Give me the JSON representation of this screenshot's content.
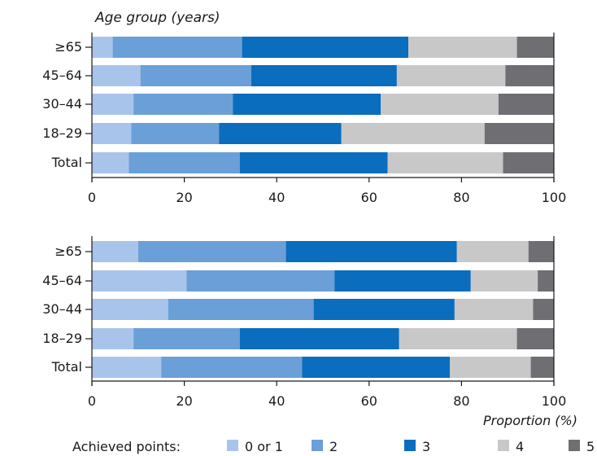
{
  "chart_data": [
    {
      "type": "bar",
      "orientation": "horizontal",
      "stacked": true,
      "ylabel": "Age group (years)",
      "xlabel": "",
      "xlim": [
        0,
        100
      ],
      "xticks": [
        0,
        20,
        40,
        60,
        80,
        100
      ],
      "categories": [
        "≥65",
        "45–64",
        "30–44",
        "18–29",
        "Total"
      ],
      "series": [
        {
          "name": "0 or 1",
          "values": [
            4.5,
            10.5,
            9,
            8.5,
            8
          ]
        },
        {
          "name": "2",
          "values": [
            28,
            24,
            21.5,
            19,
            24
          ]
        },
        {
          "name": "3",
          "values": [
            36,
            31.5,
            32,
            26.5,
            32
          ]
        },
        {
          "name": "4",
          "values": [
            23.5,
            23.5,
            25.5,
            31,
            25
          ]
        },
        {
          "name": "5",
          "values": [
            8,
            10.5,
            12,
            15,
            11
          ]
        }
      ]
    },
    {
      "type": "bar",
      "orientation": "horizontal",
      "stacked": true,
      "xlabel": "Proportion (%)",
      "xlim": [
        0,
        100
      ],
      "xticks": [
        0,
        20,
        40,
        60,
        80,
        100
      ],
      "categories": [
        "≥65",
        "45–64",
        "30–44",
        "18–29",
        "Total"
      ],
      "series": [
        {
          "name": "0 or 1",
          "values": [
            10,
            20.5,
            16.5,
            9,
            15
          ]
        },
        {
          "name": "2",
          "values": [
            32,
            32,
            31.5,
            23,
            30.5
          ]
        },
        {
          "name": "3",
          "values": [
            37,
            29.5,
            30.5,
            34.5,
            32
          ]
        },
        {
          "name": "4",
          "values": [
            15.5,
            14.5,
            17,
            25.5,
            17.5
          ]
        },
        {
          "name": "5",
          "values": [
            5.5,
            3.5,
            4.5,
            8,
            5
          ]
        }
      ]
    }
  ],
  "legend": {
    "title": "Achieved points:",
    "items": [
      "0 or 1",
      "2",
      "3",
      "4",
      "5"
    ]
  },
  "colors": {
    "series": [
      "#a9c4eb",
      "#6b9fd8",
      "#0a6dbd",
      "#c8c8c8",
      "#6e6e73"
    ],
    "axis": "#1a1a1a"
  }
}
